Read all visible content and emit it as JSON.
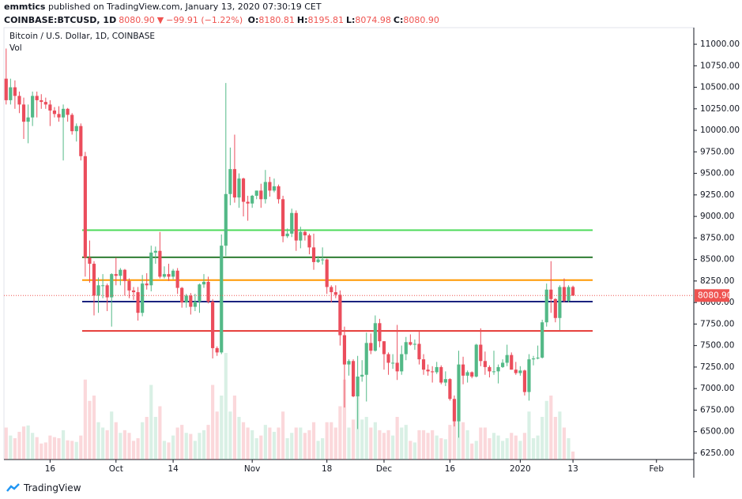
{
  "header": {
    "publisher": "emmtics",
    "published": "published on TradingView.com, January 13, 2020 07:30:19 CET",
    "symbol": "COINBASE:BTCUSD, 1D",
    "last": "8080.90",
    "arrow": "▼",
    "change": "−99.91 (−1.22%)",
    "ohlc": [
      {
        "label": "O:",
        "value": "8180.81"
      },
      {
        "label": "H:",
        "value": "8195.81"
      },
      {
        "label": "L:",
        "value": "8074.98"
      },
      {
        "label": "C:",
        "value": "8080.90"
      }
    ]
  },
  "footer": {
    "brand": "TradingView"
  },
  "chart_data": {
    "type": "candlestick",
    "title": "Bitcoin / U.S. Dollar, 1D, COINBASE",
    "up_color": "#53b987",
    "down_color": "#eb4d5c",
    "open": [
      10600,
      10350,
      10500,
      10400,
      10300,
      10100,
      10150,
      10400,
      10350,
      10330,
      10300,
      10230,
      10190,
      10150,
      10250,
      10180,
      9990,
      10050,
      9700,
      8520,
      8450,
      8080,
      8200,
      8200,
      8060,
      8330,
      8310,
      8380,
      8250,
      8140,
      8120,
      7880,
      8220,
      8200,
      8580,
      8600,
      8300,
      8330,
      8300,
      8370,
      8170,
      8000,
      8080,
      7950,
      8010,
      8210,
      8240,
      8010,
      7470,
      7420,
      8660,
      9260,
      9550,
      9220,
      9440,
      9170,
      9150,
      9240,
      9300,
      9200,
      9400,
      9300,
      9350,
      9200,
      8770,
      8800,
      9040,
      8720,
      8820,
      8780,
      8640,
      8470,
      8500,
      8500,
      8180,
      8120,
      8090,
      7620,
      7280,
      7320,
      6910,
      7140,
      7160,
      7530,
      7440,
      7760,
      7550,
      7400,
      7300,
      7300,
      7200,
      7400,
      7540,
      7510,
      7520,
      7340,
      7220,
      7200,
      7190,
      7250,
      7070,
      7110,
      6880,
      6620,
      7280,
      7150,
      7190,
      7140,
      7510,
      7320,
      7250,
      7200,
      7200,
      7250,
      7300,
      7390,
      7220,
      7180,
      7210,
      6960,
      7340,
      7350,
      7360,
      7770,
      8150,
      8040,
      7820,
      8180,
      8020,
      8180.81
    ],
    "high": [
      10950,
      10600,
      10580,
      10450,
      10380,
      10300,
      10450,
      10450,
      10420,
      10380,
      10350,
      10270,
      10280,
      10300,
      10260,
      10200,
      10080,
      10080,
      9750,
      8720,
      8480,
      8290,
      8330,
      8220,
      8340,
      8520,
      8400,
      8390,
      8280,
      8180,
      8180,
      8320,
      8340,
      8660,
      8650,
      8820,
      8420,
      8450,
      8390,
      8400,
      8180,
      8100,
      8110,
      8100,
      8220,
      8330,
      8300,
      8040,
      7490,
      8790,
      10550,
      9800,
      9950,
      9500,
      9450,
      9240,
      9250,
      9300,
      9380,
      9540,
      9460,
      9440,
      9370,
      9240,
      8860,
      9090,
      9070,
      8880,
      8840,
      8800,
      8800,
      8540,
      8640,
      8510,
      8200,
      8200,
      8140,
      7720,
      7340,
      7340,
      7380,
      7330,
      7650,
      7640,
      7850,
      7810,
      7550,
      7420,
      7400,
      7740,
      7500,
      7600,
      7630,
      7570,
      7660,
      7400,
      7280,
      7260,
      7310,
      7270,
      7200,
      7120,
      6920,
      7440,
      7370,
      7210,
      7200,
      7520,
      7700,
      7430,
      7270,
      7440,
      7280,
      7340,
      7510,
      7420,
      7310,
      7260,
      7220,
      7400,
      7380,
      7500,
      7800,
      8220,
      8480,
      8050,
      8200,
      8280,
      8200,
      8195.81
    ],
    "low": [
      10300,
      10300,
      10250,
      10200,
      9900,
      9850,
      10050,
      10150,
      10250,
      10250,
      10050,
      10150,
      10100,
      9650,
      10100,
      9950,
      9870,
      9650,
      8300,
      8230,
      7850,
      7880,
      8050,
      7900,
      7720,
      8200,
      8200,
      8080,
      8050,
      8030,
      7790,
      7840,
      8150,
      8130,
      8450,
      8280,
      8280,
      8250,
      8270,
      8100,
      7940,
      7940,
      7860,
      7900,
      7880,
      8170,
      7990,
      7350,
      7380,
      7400,
      8540,
      9130,
      9160,
      9100,
      9000,
      8950,
      9100,
      9200,
      9100,
      9150,
      9230,
      9280,
      9150,
      8700,
      8750,
      8760,
      8600,
      8630,
      8720,
      8560,
      8380,
      8460,
      8440,
      8100,
      8000,
      8050,
      7500,
      6780,
      7150,
      6900,
      6530,
      7080,
      6850,
      7400,
      7430,
      7480,
      7220,
      7160,
      7230,
      7100,
      7160,
      7330,
      7500,
      7450,
      7280,
      7160,
      7150,
      7070,
      7170,
      7050,
      7030,
      6860,
      6560,
      6430,
      7050,
      7070,
      7120,
      7130,
      7260,
      7160,
      7130,
      7160,
      7060,
      7240,
      7260,
      7220,
      7160,
      7150,
      6920,
      6860,
      7270,
      7340,
      7350,
      7720,
      7880,
      7770,
      7680,
      8000,
      8000,
      8074.98
    ],
    "close": [
      10350,
      10500,
      10400,
      10300,
      10100,
      10150,
      10400,
      10350,
      10330,
      10300,
      10230,
      10190,
      10150,
      10250,
      10180,
      9990,
      10050,
      9700,
      8520,
      8450,
      8080,
      8200,
      8200,
      8060,
      8330,
      8310,
      8380,
      8250,
      8140,
      8120,
      7880,
      8220,
      8200,
      8580,
      8600,
      8300,
      8330,
      8300,
      8370,
      8170,
      8000,
      8080,
      7950,
      8010,
      8210,
      8240,
      8010,
      7470,
      7420,
      8660,
      9260,
      9550,
      9220,
      9440,
      9170,
      9150,
      9240,
      9300,
      9200,
      9400,
      9300,
      9350,
      9200,
      8770,
      8800,
      9040,
      8720,
      8820,
      8780,
      8640,
      8470,
      8500,
      8500,
      8180,
      8120,
      8090,
      7620,
      7280,
      7320,
      6910,
      7140,
      7160,
      7530,
      7440,
      7760,
      7550,
      7400,
      7300,
      7300,
      7200,
      7400,
      7540,
      7510,
      7520,
      7340,
      7220,
      7200,
      7190,
      7250,
      7070,
      7110,
      6880,
      6620,
      7280,
      7150,
      7190,
      7140,
      7510,
      7320,
      7250,
      7200,
      7200,
      7250,
      7300,
      7390,
      7220,
      7180,
      7210,
      6960,
      7340,
      7350,
      7360,
      7770,
      8150,
      8040,
      7820,
      8180,
      8020,
      8180,
      8080.9
    ],
    "volume": {
      "name": "Vol",
      "values": [
        6000,
        4500,
        4000,
        5200,
        6200,
        6400,
        5000,
        4200,
        3000,
        3200,
        4500,
        4200,
        4000,
        5500,
        3600,
        3500,
        3300,
        4500,
        15000,
        11000,
        12000,
        7000,
        6000,
        5500,
        9000,
        7000,
        5000,
        5500,
        5000,
        3500,
        4000,
        7000,
        8000,
        14000,
        8000,
        10000,
        3500,
        3200,
        4500,
        6000,
        6500,
        5000,
        4800,
        3500,
        5000,
        5500,
        6500,
        14000,
        9000,
        12000,
        20000,
        9000,
        12000,
        8000,
        7000,
        6000,
        5500,
        4000,
        4500,
        6500,
        6000,
        5200,
        6000,
        9000,
        4000,
        5000,
        6000,
        6000,
        5000,
        5500,
        7000,
        3500,
        4000,
        7000,
        7000,
        6000,
        10000,
        15000,
        6000,
        7500,
        13000,
        7500,
        8000,
        6000,
        7000,
        5500,
        5000,
        5500,
        4500,
        8000,
        6000,
        6500,
        3500,
        3200,
        5500,
        5500,
        5000,
        5500,
        4500,
        4000,
        3800,
        6500,
        9500,
        13000,
        7000,
        5500,
        3000,
        3500,
        6000,
        6000,
        4000,
        5000,
        4500,
        3500,
        4000,
        5000,
        4500,
        3500,
        5000,
        9000,
        4000,
        4500,
        8000,
        11000,
        12000,
        8000,
        9000,
        6000,
        4000,
        1500
      ]
    },
    "xlim": [
      -0.5,
      156.5
    ],
    "xticks": [
      {
        "value": 10,
        "label": "16"
      },
      {
        "value": 25,
        "label": "Oct"
      },
      {
        "value": 38,
        "label": "14"
      },
      {
        "value": 56,
        "label": "Nov"
      },
      {
        "value": 73,
        "label": "18"
      },
      {
        "value": 86,
        "label": "Dec"
      },
      {
        "value": 101,
        "label": "16"
      },
      {
        "value": 117,
        "label": "2020"
      },
      {
        "value": 129,
        "label": "13"
      },
      {
        "value": 148,
        "label": "Feb"
      }
    ],
    "ylim": [
      6176,
      11193
    ],
    "yticks": [
      {
        "value": 6250,
        "label": "6250.00"
      },
      {
        "value": 6500,
        "label": "6500.00"
      },
      {
        "value": 6750,
        "label": "6750.00"
      },
      {
        "value": 7000,
        "label": "7000.00"
      },
      {
        "value": 7250,
        "label": "7250.00"
      },
      {
        "value": 7500,
        "label": "7500.00"
      },
      {
        "value": 7750,
        "label": "7750.00"
      },
      {
        "value": 8000,
        "label": "8000.00"
      },
      {
        "value": 8250,
        "label": "8250.00"
      },
      {
        "value": 8500,
        "label": "8500.00"
      },
      {
        "value": 8750,
        "label": "8750.00"
      },
      {
        "value": 9000,
        "label": "9000.00"
      },
      {
        "value": 9250,
        "label": "9250.00"
      },
      {
        "value": 9500,
        "label": "9500.00"
      },
      {
        "value": 9750,
        "label": "9750.00"
      },
      {
        "value": 10000,
        "label": "10000.00"
      },
      {
        "value": 10250,
        "label": "10250.00"
      },
      {
        "value": 10500,
        "label": "10500.00"
      },
      {
        "value": 10750,
        "label": "10750.00"
      },
      {
        "value": 11000,
        "label": "11000.00"
      }
    ],
    "levels": [
      {
        "value": 8840,
        "color": "#4cdb5a"
      },
      {
        "value": 8525,
        "color": "#2e7d32"
      },
      {
        "value": 8260,
        "color": "#ff9800"
      },
      {
        "value": 8010,
        "color": "#1a237e"
      },
      {
        "value": 7670,
        "color": "#e53935"
      }
    ],
    "last_price": {
      "value": 8080.9,
      "label": "8080.90",
      "color": "#ef5350"
    },
    "grid": false
  }
}
